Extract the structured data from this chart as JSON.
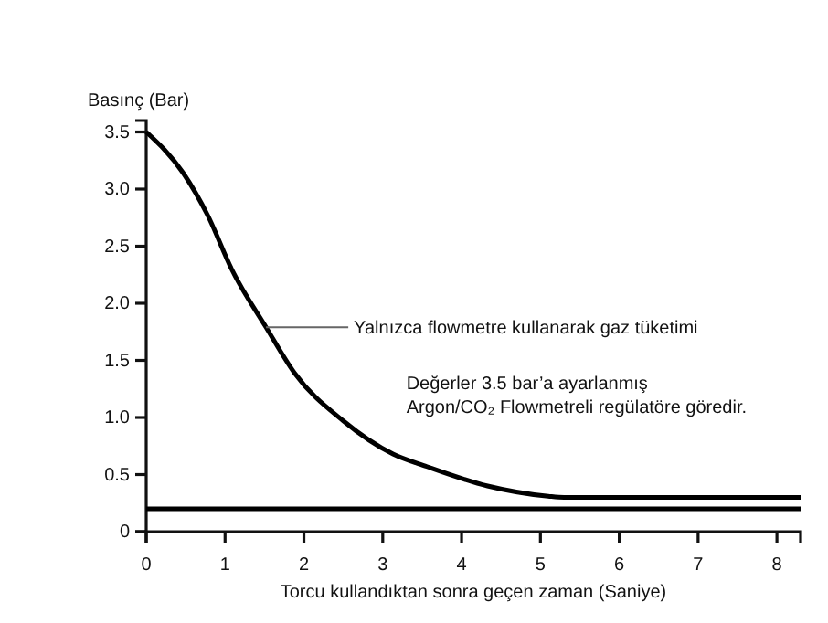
{
  "chart_data": {
    "type": "line",
    "ylabel": "Basınç (Bar)",
    "xlabel": "Torcu kullandıktan sonra geçen zaman (Saniye)",
    "xlim": [
      0,
      8.3
    ],
    "ylim": [
      0,
      3.6
    ],
    "xticks": [
      0,
      1,
      2,
      3,
      4,
      5,
      6,
      7,
      8
    ],
    "yticks": [
      0,
      0.5,
      {
        "value": 1,
        "label": "1.0"
      },
      1.5,
      {
        "value": 2,
        "label": "2.0"
      },
      2.5,
      {
        "value": 3,
        "label": "3.0"
      },
      3.5
    ],
    "grid": false,
    "line_style": "solid",
    "series": [
      {
        "color": "#000000",
        "x": [
          0,
          0.47,
          0.78,
          1.09,
          1.52,
          1.88,
          2.5,
          3.13,
          3.56,
          4.33,
          5.1,
          5.3,
          8.3
        ],
        "values": [
          3.5,
          3.14,
          2.77,
          2.29,
          1.79,
          1.39,
          0.97,
          0.68,
          0.57,
          0.4,
          0.31,
          0.3,
          0.3
        ]
      },
      {
        "color": "#000000",
        "x": [
          0,
          8.3
        ],
        "values": [
          0.2,
          0.2
        ]
      }
    ],
    "annotations": [
      {
        "text": "Yalnızca flowmetre kullanarak gaz tüketimi",
        "x": 1.52,
        "y": 1.79
      },
      "Değerler 3.5 bar’a ayarlanmış\nArgon/CO₂ Flowmetreli regülatöre göredir."
    ]
  }
}
